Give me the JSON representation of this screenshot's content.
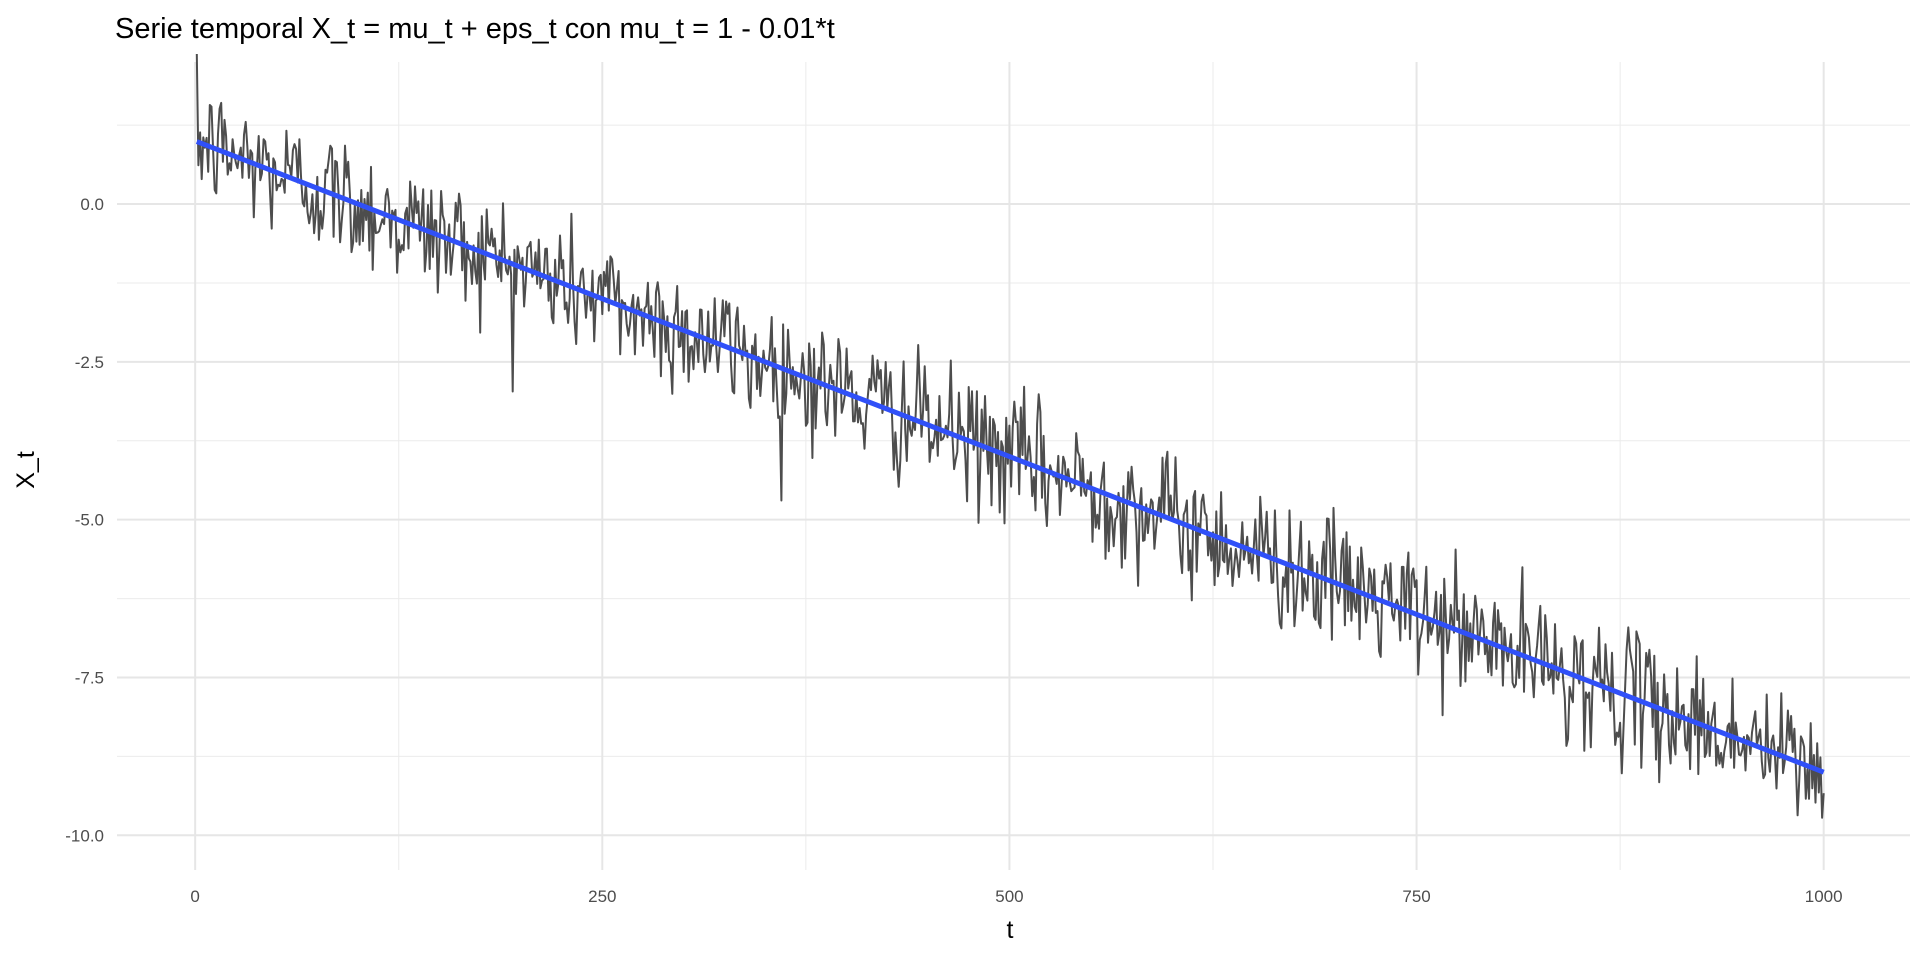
{
  "chart_data": {
    "type": "line",
    "title": "Serie temporal X_t = mu_t + eps_t con mu_t = 1 - 0.01*t",
    "xlabel": "t",
    "ylabel": "X_t",
    "xlim": [
      -48,
      1053
    ],
    "ylim": [
      -10.55,
      2.25
    ],
    "x_ticks": [
      0,
      250,
      500,
      750,
      1000
    ],
    "x_tick_labels": [
      "0",
      "250",
      "500",
      "750",
      "1000"
    ],
    "y_ticks": [
      0,
      -2.5,
      -5,
      -7.5,
      -10
    ],
    "y_tick_labels": [
      "0.0",
      "-2.5",
      "-5.0",
      "-7.5",
      "-10.0"
    ],
    "grid": true,
    "series": [
      {
        "name": "X_t",
        "color": "#4d4d4d",
        "t_start": 1,
        "t_end": 1000,
        "trend_intercept": 1,
        "trend_slope": -0.01,
        "noise_sd": 0.5
      },
      {
        "name": "mu_t",
        "color": "#3050f8",
        "t_start": 1,
        "t_end": 1000,
        "intercept": 1,
        "slope": -0.01
      }
    ]
  }
}
